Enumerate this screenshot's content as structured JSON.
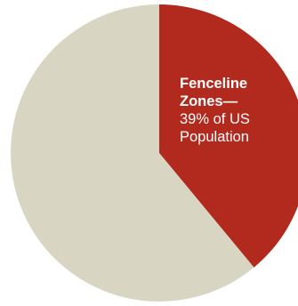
{
  "chart_data": {
    "type": "pie",
    "slices": [
      {
        "name_lines": [
          "Fenceline",
          "Zones—"
        ],
        "value_lines": [
          "39% of US",
          "Population"
        ],
        "value": 39,
        "color": "#b22a1e"
      },
      {
        "name_lines": [],
        "value_lines": [],
        "value": 61,
        "color": "#d8d6c3"
      }
    ],
    "start": "12 o'clock",
    "direction": "clockwise"
  }
}
